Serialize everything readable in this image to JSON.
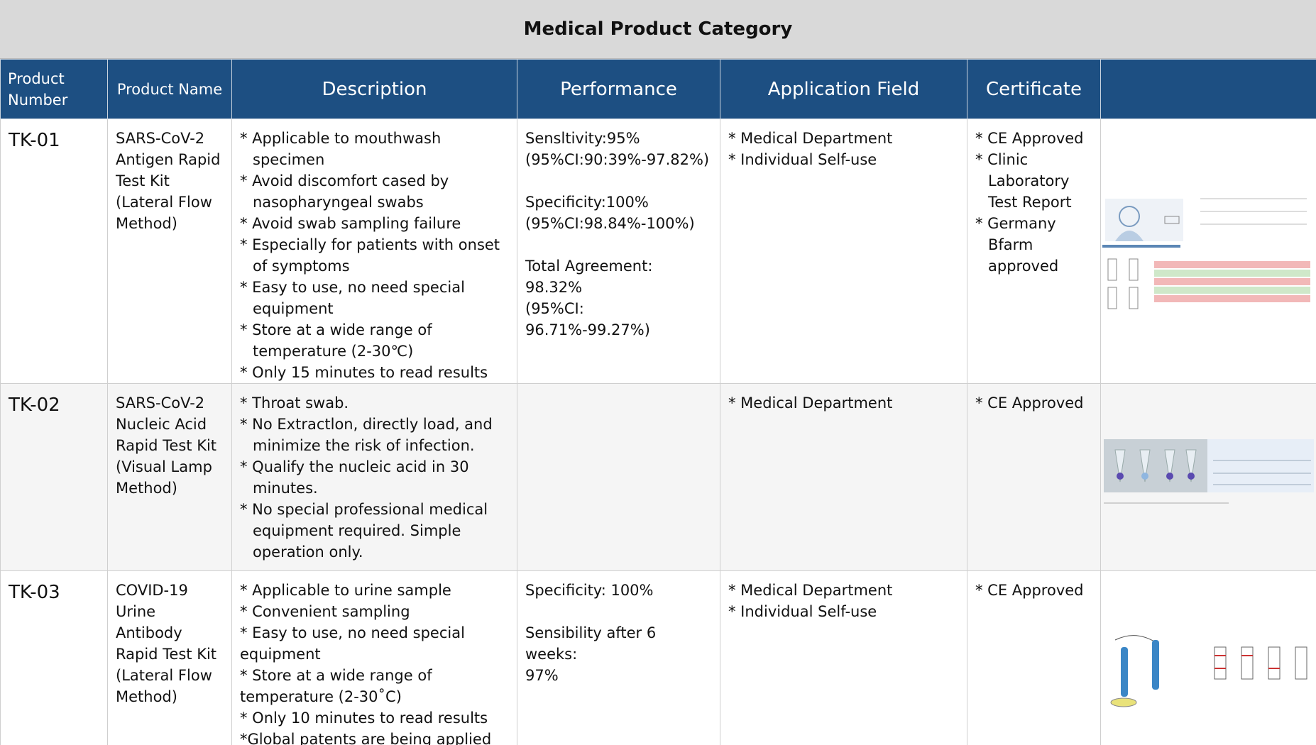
{
  "title": "Medical Product Category",
  "headers": [
    "Product Number",
    "Product Name",
    "Description",
    "Performance",
    "Application Field",
    "Certificate"
  ],
  "rows": [
    {
      "number": "TK-01",
      "name": "SARS-CoV-2 Antigen Rapid Test Kit (Lateral Flow Method)",
      "description": [
        "* Applicable to mouthwash specimen",
        "* Avoid discomfort cased by nasopharyngeal swabs",
        "* Avoid swab sampling failure",
        "* Especially for patients with onset of symptoms",
        "* Easy to use, no need special equipment",
        "* Store at a wide range of temperature (2-30℃)",
        "* Only 15 minutes to read results"
      ],
      "performance": [
        [
          "Sensltivity:95%",
          "(95%CI:90:39%-97.82%)"
        ],
        [
          "Specificity:100%",
          "(95%CI:98.84%-100%)"
        ],
        [
          "Total Agreement: 98.32%",
          "(95%CI: 96.71%-99.27%)"
        ]
      ],
      "application": [
        "* Medical Department",
        "* Individual Self-use"
      ],
      "certificate": [
        "* CE Approved",
        "* Clinic Laboratory Test Report",
        "* Germany Bfarm approved"
      ]
    },
    {
      "number": "TK-02",
      "name": "SARS-CoV-2 Nucleic Acid Rapid Test Kit (Visual Lamp Method)",
      "description": [
        "* Throat swab.",
        "* No Extractlon, directly load, and minimize the risk of infection.",
        "* Qualify the nucleic acid in 30 minutes.",
        "* No special professional medical equipment required. Simple operation only."
      ],
      "performance": [],
      "application": [
        "* Medical Department"
      ],
      "certificate": [
        "* CE Approved"
      ]
    },
    {
      "number": "TK-03",
      "name": "COVID-19 Urine Antibody Rapid Test Kit (Lateral Flow Method)",
      "description": [
        "* Applicable to urine sample",
        "* Convenient sampling",
        "* Easy to use, no need special equipment",
        "* Store at a wide range of temperature (2-30˚C)",
        "* Only 10 minutes to read results",
        "*Global patents are being applied for"
      ],
      "performance": [
        [
          "Specificity: 100%"
        ],
        [
          "Sensibility after 6 weeks:",
          "97%"
        ]
      ],
      "application": [
        "* Medical Department",
        "* Individual Self-use"
      ],
      "certificate": [
        "* CE Approved"
      ]
    }
  ]
}
